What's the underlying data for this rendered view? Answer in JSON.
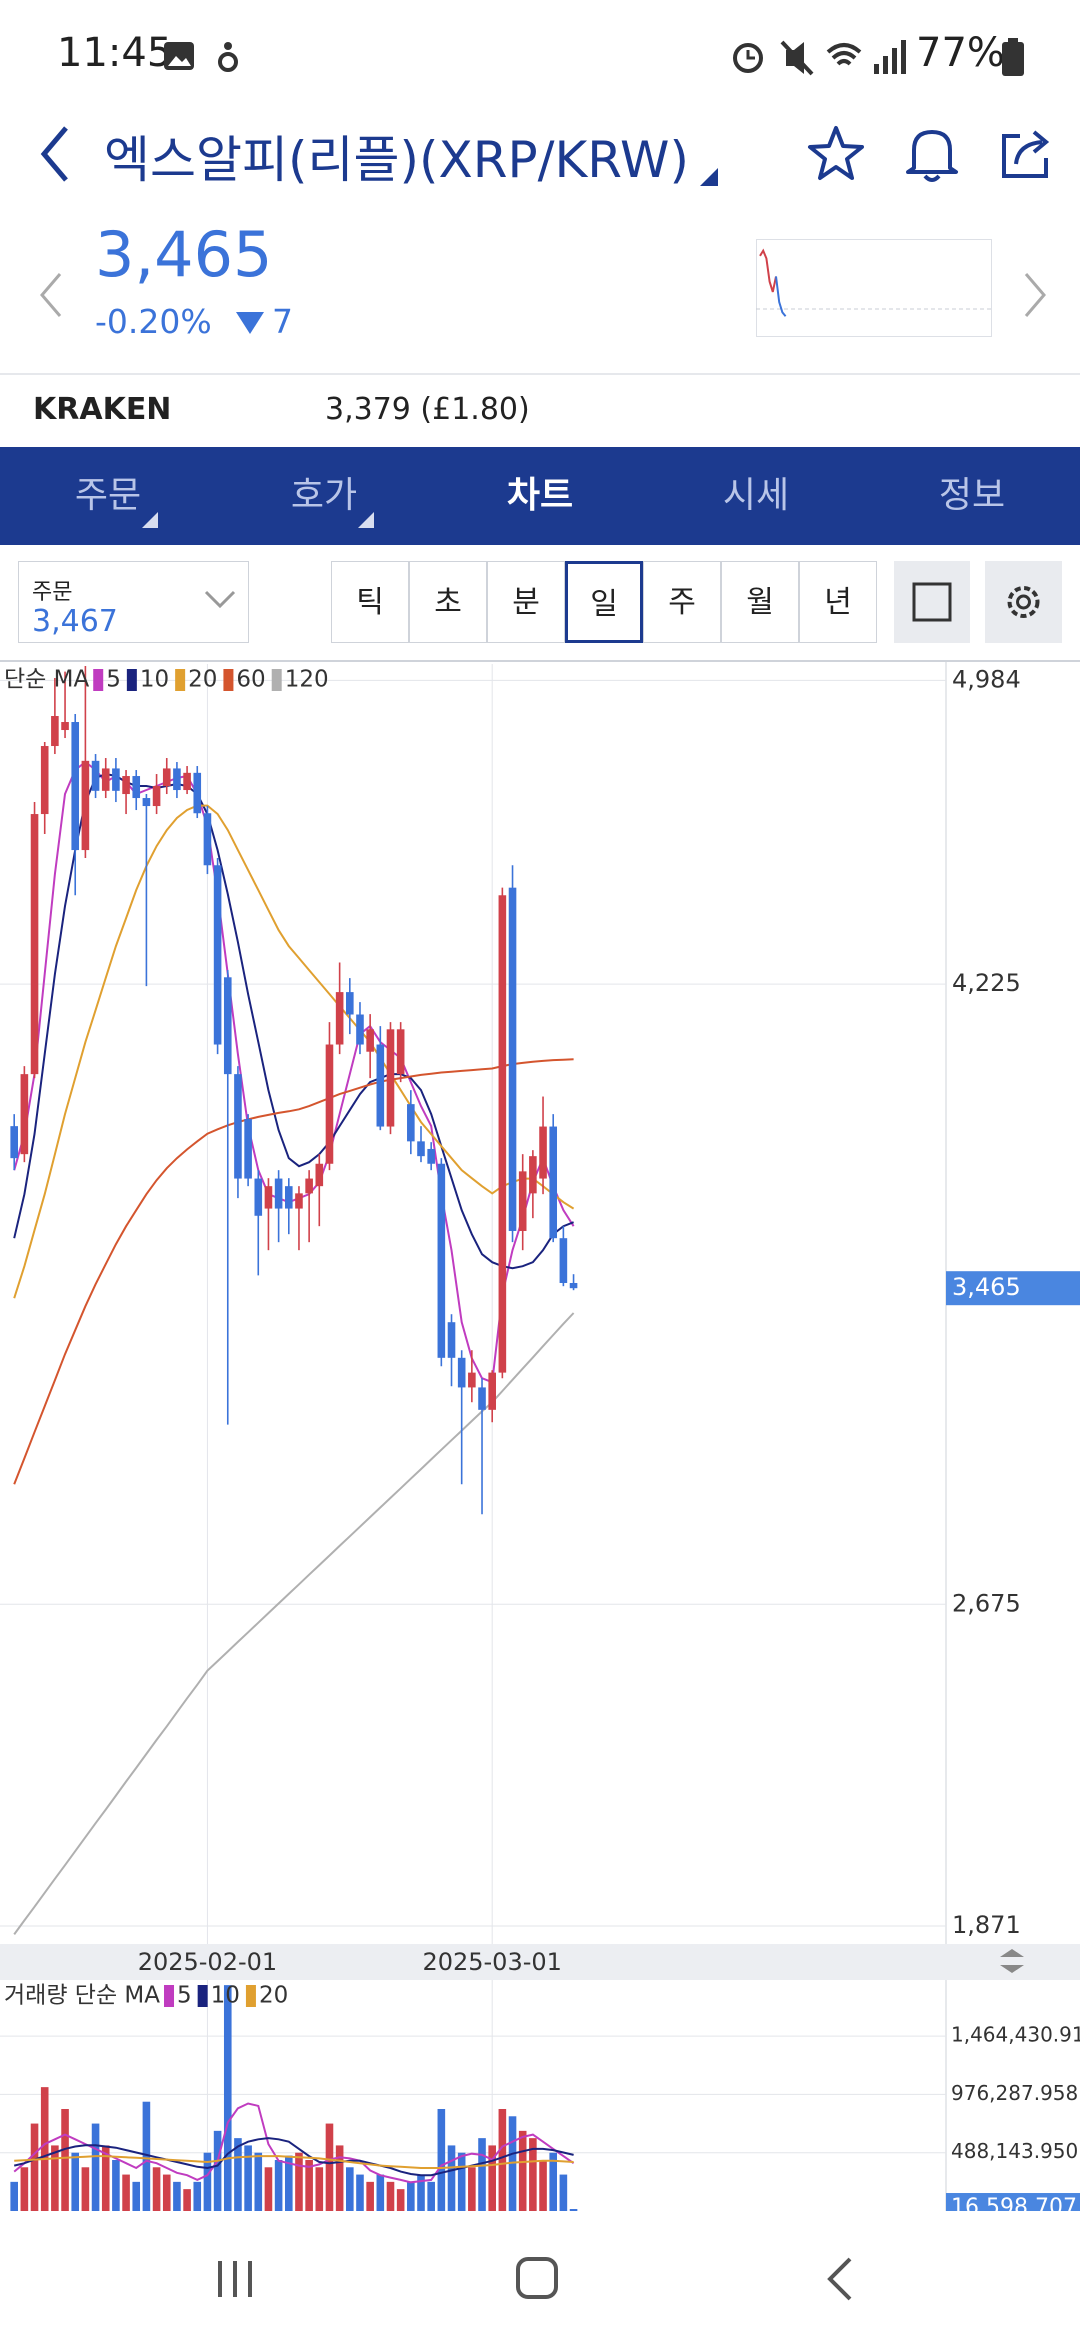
{
  "status_bar": {
    "time": "11:45",
    "battery": "77%"
  },
  "header": {
    "title": "엑스알피(리플)(XRP/KRW)"
  },
  "quote": {
    "price": "3,465",
    "change_pct": "-0.20%",
    "change": "7",
    "sparkline": {
      "type": "line",
      "ylim": [
        3400,
        3750
      ],
      "series": [
        {
          "color": "#d0414a",
          "values": [
            3700,
            3720,
            3690,
            3600,
            3560,
            3620,
            null,
            null,
            null
          ]
        },
        {
          "color": "#3b73d9",
          "values": [
            null,
            null,
            null,
            null,
            null,
            3620,
            3520,
            3480,
            3465
          ]
        }
      ]
    }
  },
  "exchange": {
    "name": "KRAKEN",
    "price": "3,379 (£1.80)"
  },
  "tabs": [
    "주문",
    "호가",
    "차트",
    "시세",
    "정보"
  ],
  "order_select": {
    "label": "주문",
    "value": "3,467"
  },
  "intervals": [
    "틱",
    "초",
    "분",
    "일",
    "주",
    "월",
    "년"
  ],
  "chart_data": [
    {
      "type": "candlestick",
      "legend_title": "단순 MA",
      "up_color": "#d0414a",
      "down_color": "#3b73d9",
      "x": [
        "2025-01-13",
        "2025-01-14",
        "2025-01-15",
        "2025-01-16",
        "2025-01-17",
        "2025-01-18",
        "2025-01-19",
        "2025-01-20",
        "2025-01-21",
        "2025-01-22",
        "2025-01-23",
        "2025-01-24",
        "2025-01-25",
        "2025-01-26",
        "2025-01-27",
        "2025-01-28",
        "2025-01-29",
        "2025-01-30",
        "2025-01-31",
        "2025-02-01",
        "2025-02-02",
        "2025-02-03",
        "2025-02-04",
        "2025-02-05",
        "2025-02-06",
        "2025-02-07",
        "2025-02-08",
        "2025-02-09",
        "2025-02-10",
        "2025-02-11",
        "2025-02-12",
        "2025-02-13",
        "2025-02-14",
        "2025-02-15",
        "2025-02-16",
        "2025-02-17",
        "2025-02-18",
        "2025-02-19",
        "2025-02-20",
        "2025-02-21",
        "2025-02-22",
        "2025-02-23",
        "2025-02-24",
        "2025-02-25",
        "2025-02-26",
        "2025-02-27",
        "2025-02-28",
        "2025-03-01",
        "2025-03-02",
        "2025-03-03",
        "2025-03-04",
        "2025-03-05",
        "2025-03-06",
        "2025-03-07",
        "2025-03-08",
        "2025-03-09"
      ],
      "open": [
        3870,
        3800,
        4000,
        4650,
        4820,
        4860,
        4880,
        4560,
        4783,
        4708,
        4764,
        4700,
        4745,
        4690,
        4670,
        4720,
        4764,
        4710,
        4753,
        4652,
        4522,
        4242,
        4000,
        3888,
        3739,
        3664,
        3739,
        3720,
        3664,
        3702,
        3720,
        3776,
        4074,
        4205,
        4149,
        4056,
        4074,
        3869,
        4000,
        3925,
        3832,
        3813,
        3776,
        3380,
        3291,
        3217,
        3217,
        3161,
        3254,
        4466,
        3608,
        3702,
        3739,
        3869,
        3590,
        3478
      ],
      "high": [
        3900,
        4020,
        4680,
        4830,
        4990,
        5006,
        4900,
        5020,
        4800,
        4790,
        4790,
        4760,
        4760,
        4700,
        4750,
        4790,
        4780,
        4770,
        4770,
        4670,
        4540,
        4260,
        4020,
        3900,
        3760,
        3740,
        3760,
        3740,
        3720,
        3760,
        3800,
        4130,
        4279,
        4240,
        4180,
        4150,
        4120,
        4130,
        4130,
        3960,
        3870,
        3830,
        3790,
        3400,
        3310,
        3310,
        3240,
        3260,
        4466,
        4522,
        3800,
        3810,
        3944,
        3900,
        3620,
        3500
      ],
      "low": [
        3760,
        3780,
        3990,
        4600,
        4800,
        4840,
        4447,
        4540,
        4690,
        4690,
        4680,
        4650,
        4660,
        4220,
        4650,
        4700,
        4690,
        4700,
        4640,
        4500,
        4050,
        3124,
        3690,
        3720,
        3497,
        3560,
        3580,
        3600,
        3560,
        3580,
        3620,
        3760,
        4050,
        4100,
        4050,
        3990,
        3860,
        3850,
        3980,
        3800,
        3780,
        3760,
        3270,
        3220,
        2975,
        3180,
        2900,
        3130,
        3240,
        3580,
        3560,
        3640,
        3700,
        3580,
        3470,
        3460
      ],
      "close": [
        3790,
        4000,
        4650,
        4820,
        4895,
        4880,
        4560,
        4783,
        4708,
        4764,
        4708,
        4745,
        4690,
        4670,
        4720,
        4764,
        4710,
        4753,
        4652,
        4522,
        4074,
        4000,
        3739,
        3739,
        3646,
        3720,
        3664,
        3664,
        3702,
        3739,
        3776,
        4074,
        4205,
        4149,
        4074,
        4112,
        3869,
        4112,
        4112,
        3832,
        3795,
        3776,
        3291,
        3291,
        3217,
        3254,
        3161,
        3254,
        4447,
        3608,
        3757,
        3795,
        3869,
        3590,
        3478,
        3465
      ],
      "series": [
        {
          "name": "5",
          "color": "#c03cc0",
          "values": [
            3760,
            3850,
            4000,
            4250,
            4500,
            4700,
            4760,
            4780,
            4760,
            4730,
            4745,
            4730,
            4700,
            4710,
            4720,
            4730,
            4740,
            4745,
            4700,
            4620,
            4450,
            4250,
            4050,
            3870,
            3760,
            3700,
            3690,
            3680,
            3690,
            3700,
            3730,
            3800,
            3900,
            4000,
            4100,
            4120,
            4080,
            4060,
            4040,
            3980,
            3920,
            3870,
            3700,
            3560,
            3380,
            3290,
            3240,
            3230,
            3450,
            3560,
            3640,
            3730,
            3790,
            3720,
            3660,
            3620
          ]
        },
        {
          "name": "10",
          "color": "#1a237e",
          "values": [
            3590,
            3700,
            3850,
            4050,
            4250,
            4420,
            4560,
            4680,
            4740,
            4750,
            4745,
            4730,
            4720,
            4720,
            4715,
            4720,
            4725,
            4720,
            4700,
            4650,
            4560,
            4450,
            4330,
            4200,
            4080,
            3960,
            3860,
            3790,
            3770,
            3780,
            3800,
            3830,
            3870,
            3910,
            3950,
            3980,
            3990,
            4000,
            4000,
            3990,
            3960,
            3900,
            3820,
            3740,
            3660,
            3600,
            3550,
            3530,
            3520,
            3515,
            3520,
            3530,
            3560,
            3600,
            3620,
            3630
          ]
        },
        {
          "name": "20",
          "color": "#e0a030",
          "values": [
            3440,
            3520,
            3610,
            3700,
            3800,
            3900,
            3990,
            4080,
            4160,
            4240,
            4320,
            4390,
            4460,
            4520,
            4570,
            4610,
            4640,
            4660,
            4671,
            4671,
            4650,
            4610,
            4560,
            4510,
            4460,
            4410,
            4360,
            4320,
            4290,
            4260,
            4230,
            4200,
            4170,
            4140,
            4110,
            4080,
            4040,
            4000,
            3960,
            3920,
            3880,
            3850,
            3820,
            3790,
            3760,
            3740,
            3720,
            3702,
            3720,
            3730,
            3739,
            3739,
            3720,
            3700,
            3680,
            3664
          ]
        },
        {
          "name": "60",
          "color": "#d4552e",
          "values": [
            2975,
            3040,
            3105,
            3170,
            3235,
            3300,
            3360,
            3420,
            3475,
            3525,
            3575,
            3620,
            3660,
            3700,
            3735,
            3765,
            3790,
            3812,
            3832,
            3851,
            3862,
            3872,
            3880,
            3887,
            3893,
            3898,
            3903,
            3907,
            3912,
            3920,
            3930,
            3940,
            3950,
            3958,
            3966,
            3974,
            3981,
            3986,
            3990,
            3994,
            3998,
            4001,
            4004,
            4006,
            4008,
            4010,
            4012,
            4014,
            4020,
            4025,
            4028,
            4031,
            4033,
            4035,
            4036,
            4037
          ]
        },
        {
          "name": "120",
          "color": "#b0b0b0",
          "values": [
            1850,
            1885,
            1919,
            1954,
            1989,
            2023,
            2058,
            2093,
            2128,
            2162,
            2197,
            2232,
            2266,
            2301,
            2336,
            2370,
            2405,
            2440,
            2474,
            2509,
            2533,
            2557,
            2581,
            2605,
            2629,
            2653,
            2677,
            2701,
            2725,
            2749,
            2773,
            2797,
            2821,
            2845,
            2869,
            2893,
            2917,
            2941,
            2965,
            2989,
            3013,
            3037,
            3061,
            3085,
            3109,
            3133,
            3157,
            3180,
            3208,
            3236,
            3264,
            3292,
            3320,
            3348,
            3376,
            3403
          ]
        }
      ],
      "ylim": [
        1826,
        5025
      ],
      "yticks": [
        {
          "value": 4984,
          "label": "4,984"
        },
        {
          "value": 4225,
          "label": "4,225"
        },
        {
          "value": 2675,
          "label": "2,675"
        },
        {
          "value": 1871,
          "label": "1,871"
        }
      ],
      "xticks": [
        "2025-02-01",
        "2025-03-01"
      ],
      "price_marker": {
        "value": 3465,
        "label": "3,465"
      },
      "grid": true
    },
    {
      "type": "bar",
      "legend_title": "거래량 단순 MA",
      "values": [
        244000,
        366000,
        732000,
        1037000,
        549000,
        854000,
        488000,
        366000,
        732000,
        549000,
        427000,
        305000,
        244000,
        915000,
        366000,
        305000,
        244000,
        183000,
        244000,
        488000,
        671000,
        1891000,
        610000,
        549000,
        488000,
        366000,
        427000,
        464000,
        488000,
        427000,
        366000,
        732000,
        549000,
        366000,
        305000,
        244000,
        305000,
        244000,
        183000,
        244000,
        305000,
        244000,
        854000,
        549000,
        488000,
        366000,
        610000,
        549000,
        854000,
        793000,
        671000,
        610000,
        427000,
        488000,
        305000,
        16598.707
      ],
      "series": [
        {
          "name": "5",
          "color": "#c03cc0",
          "values": [
            330000,
            400000,
            480000,
            560000,
            600000,
            640000,
            600000,
            560000,
            520000,
            480000,
            440000,
            400000,
            360000,
            420000,
            400000,
            360000,
            320000,
            300000,
            260000,
            300000,
            420000,
            740000,
            860000,
            900000,
            880000,
            560000,
            420000,
            400000,
            380000,
            370000,
            390000,
            430000,
            450000,
            440000,
            420000,
            340000,
            300000,
            280000,
            260000,
            240000,
            250000,
            260000,
            380000,
            420000,
            460000,
            480000,
            470000,
            430000,
            540000,
            580000,
            620000,
            640000,
            580000,
            520000,
            460000,
            400000
          ]
        },
        {
          "name": "10",
          "color": "#1a237e",
          "values": [
            380000,
            400000,
            430000,
            460000,
            490000,
            520000,
            540000,
            550000,
            550000,
            540000,
            530000,
            510000,
            490000,
            470000,
            450000,
            430000,
            410000,
            390000,
            370000,
            360000,
            380000,
            480000,
            540000,
            580000,
            600000,
            610000,
            600000,
            580000,
            520000,
            460000,
            410000,
            400000,
            410000,
            420000,
            420000,
            400000,
            380000,
            360000,
            330000,
            310000,
            300000,
            300000,
            320000,
            340000,
            360000,
            380000,
            400000,
            420000,
            450000,
            480000,
            500000,
            520000,
            520000,
            510000,
            490000,
            470000
          ]
        },
        {
          "name": "20",
          "color": "#e0a030",
          "values": [
            420000,
            425000,
            430000,
            435000,
            440000,
            445000,
            450000,
            455000,
            460000,
            460000,
            455000,
            450000,
            445000,
            440000,
            435000,
            430000,
            425000,
            420000,
            415000,
            410000,
            420000,
            440000,
            450000,
            455000,
            460000,
            460000,
            460000,
            455000,
            450000,
            445000,
            440000,
            430000,
            420000,
            410000,
            400000,
            390000,
            380000,
            375000,
            370000,
            365000,
            360000,
            360000,
            360000,
            365000,
            370000,
            375000,
            380000,
            385000,
            395000,
            405000,
            410000,
            415000,
            420000,
            420000,
            415000,
            410000
          ]
        }
      ],
      "ylim": [
        0,
        1934000
      ],
      "yticks": [
        {
          "value": 1464430.918,
          "label": "1,464,430.918"
        },
        {
          "value": 976287.958,
          "label": "976,287.958"
        },
        {
          "value": 488143.95,
          "label": "488,143.950"
        }
      ],
      "value_marker": {
        "value": 16598.707,
        "label": "16,598.707"
      },
      "grid": true
    }
  ]
}
